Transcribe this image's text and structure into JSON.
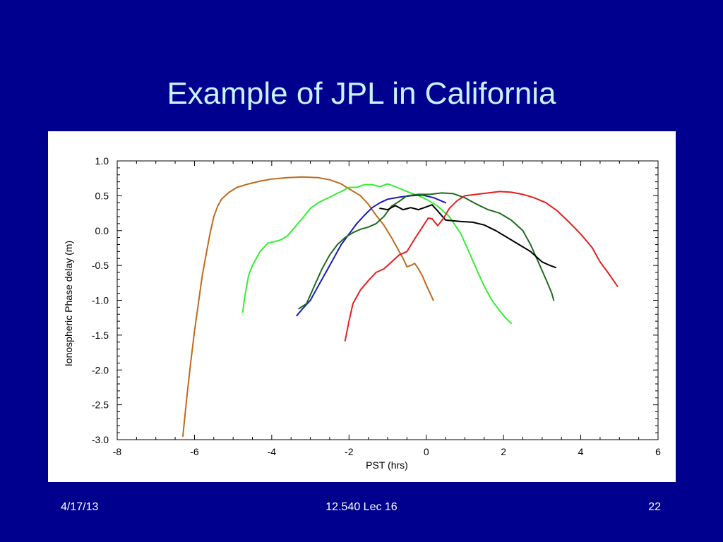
{
  "slide": {
    "title": "Example of JPL in California",
    "footer_date": "4/17/13",
    "footer_course": "12.540 Lec 16",
    "footer_page": "22",
    "background_color": "#00008f",
    "title_color": "#c8f4ff"
  },
  "chart_data": {
    "type": "line",
    "title": "",
    "xlabel": "PST (hrs)",
    "ylabel": "Ionospheric Phase delay (m)",
    "xlim": [
      -8,
      6
    ],
    "ylim": [
      -3.0,
      1.0
    ],
    "xticks": [
      -8,
      -6,
      -4,
      -2,
      0,
      2,
      4,
      6
    ],
    "yticks": [
      1.0,
      0.5,
      0.0,
      -0.5,
      -1.0,
      -1.5,
      -2.0,
      -2.5,
      -3.0
    ],
    "xtick_labels": [
      "-8",
      "-6",
      "-4",
      "-2",
      "0",
      "2",
      "4",
      "6"
    ],
    "ytick_labels": [
      "1.0",
      "0.5",
      "0.0",
      "-0.5",
      "-1.0",
      "-1.5",
      "-2.0",
      "-2.5",
      "-3.0"
    ],
    "grid": false,
    "series": [
      {
        "color": "#c06a1c",
        "points": [
          [
            -6.3,
            -2.95
          ],
          [
            -6.2,
            -2.4
          ],
          [
            -6.1,
            -1.9
          ],
          [
            -6.0,
            -1.45
          ],
          [
            -5.9,
            -1.05
          ],
          [
            -5.8,
            -0.65
          ],
          [
            -5.7,
            -0.35
          ],
          [
            -5.6,
            -0.05
          ],
          [
            -5.5,
            0.2
          ],
          [
            -5.4,
            0.35
          ],
          [
            -5.3,
            0.45
          ],
          [
            -5.1,
            0.55
          ],
          [
            -4.9,
            0.62
          ],
          [
            -4.6,
            0.67
          ],
          [
            -4.3,
            0.71
          ],
          [
            -4.0,
            0.74
          ],
          [
            -3.6,
            0.76
          ],
          [
            -3.2,
            0.77
          ],
          [
            -2.8,
            0.76
          ],
          [
            -2.5,
            0.73
          ],
          [
            -2.2,
            0.67
          ],
          [
            -2.0,
            0.6
          ],
          [
            -1.7,
            0.5
          ],
          [
            -1.5,
            0.38
          ],
          [
            -1.3,
            0.22
          ],
          [
            -1.1,
            0.08
          ],
          [
            -0.9,
            -0.1
          ],
          [
            -0.75,
            -0.25
          ],
          [
            -0.6,
            -0.4
          ],
          [
            -0.5,
            -0.52
          ],
          [
            -0.4,
            -0.5
          ],
          [
            -0.3,
            -0.47
          ],
          [
            -0.2,
            -0.55
          ],
          [
            -0.1,
            -0.65
          ],
          [
            0.0,
            -0.78
          ],
          [
            0.1,
            -0.9
          ],
          [
            0.18,
            -1.0
          ]
        ]
      },
      {
        "color": "#33ee33",
        "points": [
          [
            -4.75,
            -1.17
          ],
          [
            -4.7,
            -0.95
          ],
          [
            -4.6,
            -0.65
          ],
          [
            -4.5,
            -0.5
          ],
          [
            -4.3,
            -0.3
          ],
          [
            -4.1,
            -0.18
          ],
          [
            -3.8,
            -0.14
          ],
          [
            -3.6,
            -0.08
          ],
          [
            -3.4,
            0.05
          ],
          [
            -3.2,
            0.18
          ],
          [
            -3.0,
            0.32
          ],
          [
            -2.8,
            0.4
          ],
          [
            -2.5,
            0.48
          ],
          [
            -2.2,
            0.56
          ],
          [
            -2.0,
            0.62
          ],
          [
            -1.8,
            0.62
          ],
          [
            -1.6,
            0.66
          ],
          [
            -1.4,
            0.66
          ],
          [
            -1.2,
            0.63
          ],
          [
            -1.0,
            0.67
          ],
          [
            -0.8,
            0.63
          ],
          [
            -0.5,
            0.56
          ],
          [
            -0.2,
            0.5
          ],
          [
            0.0,
            0.45
          ],
          [
            0.3,
            0.35
          ],
          [
            0.6,
            0.2
          ],
          [
            0.9,
            -0.05
          ],
          [
            1.1,
            -0.3
          ],
          [
            1.3,
            -0.55
          ],
          [
            1.5,
            -0.8
          ],
          [
            1.7,
            -1.0
          ],
          [
            1.9,
            -1.15
          ],
          [
            2.05,
            -1.25
          ],
          [
            2.2,
            -1.33
          ]
        ]
      },
      {
        "color": "#1a1ab8",
        "points": [
          [
            -3.35,
            -1.22
          ],
          [
            -3.2,
            -1.12
          ],
          [
            -3.0,
            -1.0
          ],
          [
            -2.8,
            -0.8
          ],
          [
            -2.6,
            -0.6
          ],
          [
            -2.4,
            -0.4
          ],
          [
            -2.2,
            -0.2
          ],
          [
            -2.0,
            -0.05
          ],
          [
            -1.8,
            0.1
          ],
          [
            -1.6,
            0.22
          ],
          [
            -1.4,
            0.33
          ],
          [
            -1.2,
            0.4
          ],
          [
            -1.0,
            0.45
          ],
          [
            -0.7,
            0.48
          ],
          [
            -0.4,
            0.5
          ],
          [
            -0.1,
            0.51
          ],
          [
            0.2,
            0.47
          ],
          [
            0.5,
            0.4
          ]
        ]
      },
      {
        "color": "#1e6b1e",
        "points": [
          [
            -3.3,
            -1.12
          ],
          [
            -3.1,
            -1.05
          ],
          [
            -2.9,
            -0.8
          ],
          [
            -2.7,
            -0.55
          ],
          [
            -2.5,
            -0.35
          ],
          [
            -2.3,
            -0.2
          ],
          [
            -2.1,
            -0.1
          ],
          [
            -1.9,
            -0.03
          ],
          [
            -1.7,
            0.02
          ],
          [
            -1.5,
            0.05
          ],
          [
            -1.3,
            0.1
          ],
          [
            -1.1,
            0.2
          ],
          [
            -0.9,
            0.35
          ],
          [
            -0.7,
            0.42
          ],
          [
            -0.5,
            0.5
          ],
          [
            -0.2,
            0.52
          ],
          [
            0.1,
            0.52
          ],
          [
            0.4,
            0.54
          ],
          [
            0.7,
            0.53
          ],
          [
            1.0,
            0.47
          ],
          [
            1.3,
            0.38
          ],
          [
            1.6,
            0.3
          ],
          [
            1.9,
            0.25
          ],
          [
            2.2,
            0.15
          ],
          [
            2.5,
            0.0
          ],
          [
            2.7,
            -0.2
          ],
          [
            2.9,
            -0.45
          ],
          [
            3.1,
            -0.7
          ],
          [
            3.25,
            -0.9
          ],
          [
            3.3,
            -1.0
          ]
        ]
      },
      {
        "color": "#000000",
        "points": [
          [
            -1.2,
            0.32
          ],
          [
            -1.0,
            0.3
          ],
          [
            -0.8,
            0.36
          ],
          [
            -0.6,
            0.3
          ],
          [
            -0.4,
            0.33
          ],
          [
            -0.2,
            0.3
          ],
          [
            0.0,
            0.34
          ],
          [
            0.15,
            0.37
          ],
          [
            0.3,
            0.28
          ],
          [
            0.5,
            0.15
          ],
          [
            0.7,
            0.14
          ],
          [
            0.9,
            0.13
          ],
          [
            1.2,
            0.12
          ],
          [
            1.5,
            0.08
          ],
          [
            1.8,
            0.0
          ],
          [
            2.1,
            -0.1
          ],
          [
            2.4,
            -0.2
          ],
          [
            2.7,
            -0.3
          ],
          [
            3.0,
            -0.45
          ],
          [
            3.2,
            -0.5
          ],
          [
            3.35,
            -0.53
          ]
        ]
      },
      {
        "color": "#e41e1e",
        "points": [
          [
            -2.1,
            -1.58
          ],
          [
            -2.0,
            -1.3
          ],
          [
            -1.9,
            -1.05
          ],
          [
            -1.7,
            -0.85
          ],
          [
            -1.5,
            -0.72
          ],
          [
            -1.3,
            -0.6
          ],
          [
            -1.1,
            -0.55
          ],
          [
            -0.9,
            -0.45
          ],
          [
            -0.7,
            -0.35
          ],
          [
            -0.5,
            -0.3
          ],
          [
            -0.3,
            -0.12
          ],
          [
            -0.1,
            0.05
          ],
          [
            0.05,
            0.18
          ],
          [
            0.15,
            0.17
          ],
          [
            0.3,
            0.07
          ],
          [
            0.45,
            0.18
          ],
          [
            0.6,
            0.32
          ],
          [
            0.8,
            0.43
          ],
          [
            1.0,
            0.5
          ],
          [
            1.3,
            0.52
          ],
          [
            1.6,
            0.54
          ],
          [
            1.9,
            0.56
          ],
          [
            2.2,
            0.55
          ],
          [
            2.5,
            0.52
          ],
          [
            2.8,
            0.47
          ],
          [
            3.1,
            0.4
          ],
          [
            3.4,
            0.28
          ],
          [
            3.7,
            0.12
          ],
          [
            4.0,
            -0.05
          ],
          [
            4.3,
            -0.25
          ],
          [
            4.5,
            -0.45
          ],
          [
            4.7,
            -0.6
          ],
          [
            4.85,
            -0.72
          ],
          [
            4.95,
            -0.8
          ]
        ]
      }
    ]
  }
}
